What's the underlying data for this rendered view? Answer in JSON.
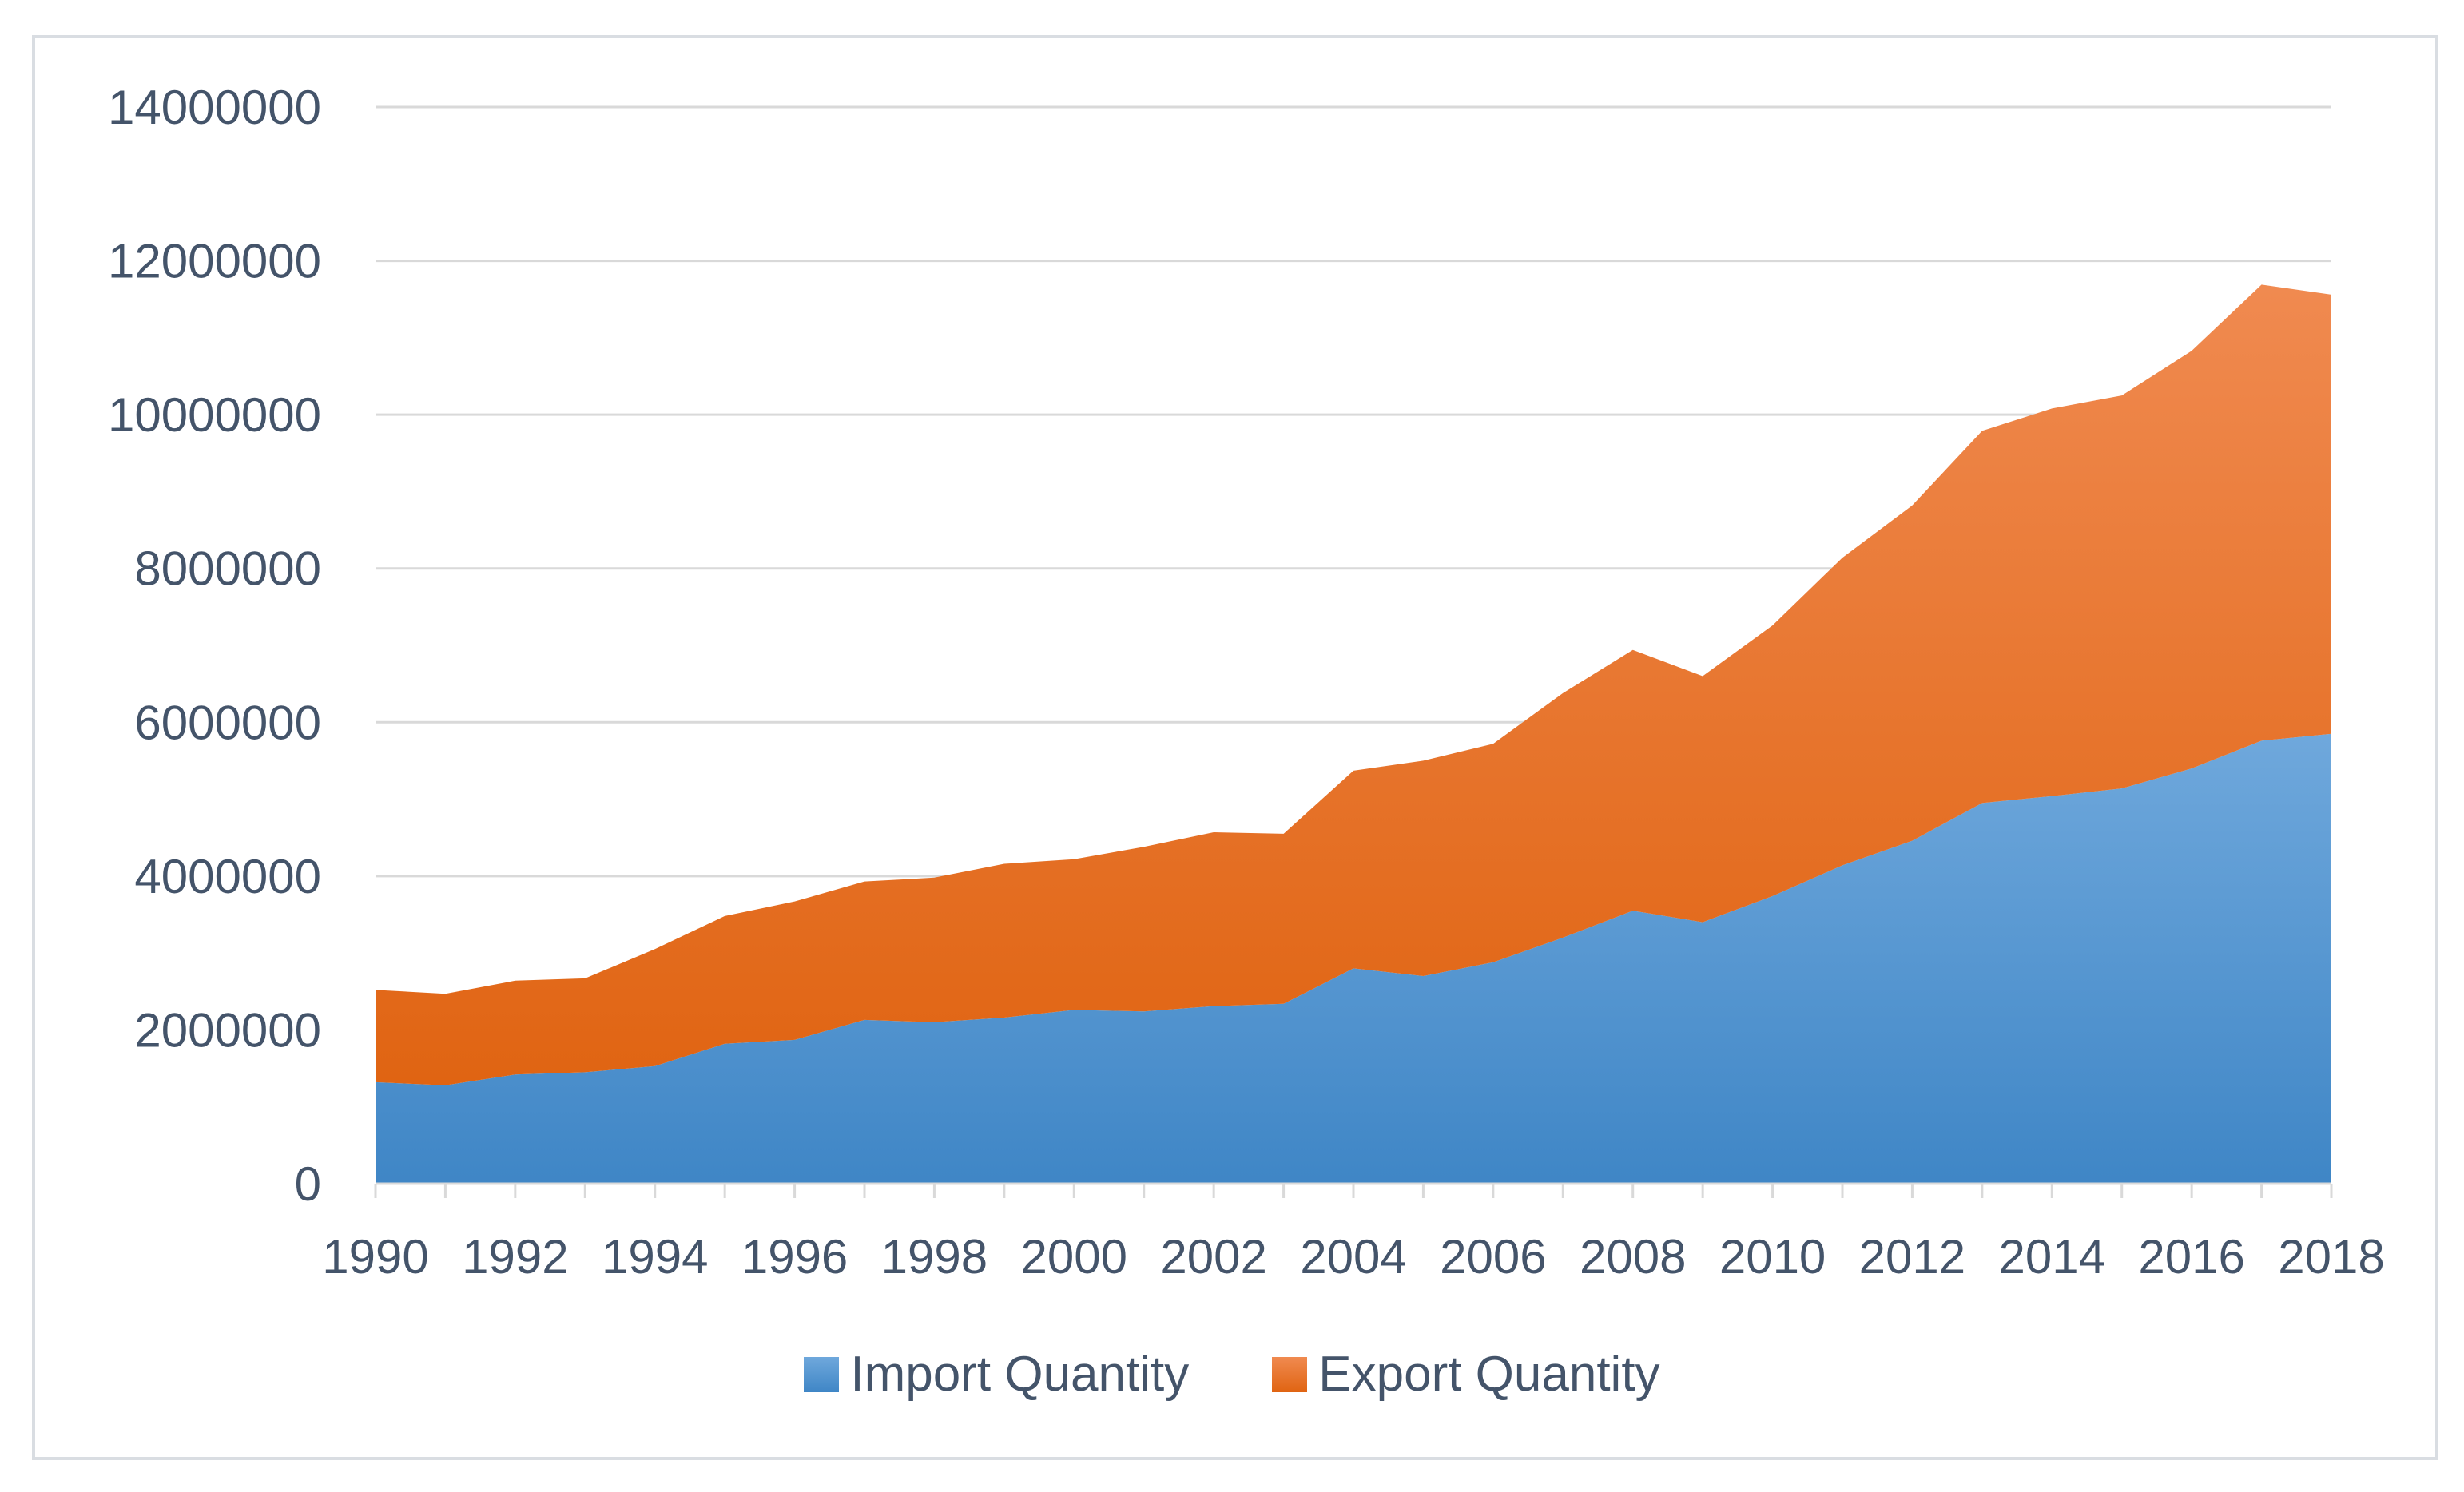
{
  "chart_data": {
    "type": "area",
    "stacked": true,
    "title": "",
    "xlabel": "",
    "ylabel": "",
    "x": [
      1990,
      1991,
      1992,
      1993,
      1994,
      1995,
      1996,
      1997,
      1998,
      1999,
      2000,
      2001,
      2002,
      2003,
      2004,
      2005,
      2006,
      2007,
      2008,
      2009,
      2010,
      2011,
      2012,
      2013,
      2014,
      2015,
      2016,
      2017,
      2018
    ],
    "x_tick_labels": [
      "1990",
      "1992",
      "1994",
      "1996",
      "1998",
      "2000",
      "2002",
      "2004",
      "2006",
      "2008",
      "2010",
      "2012",
      "2014",
      "2016",
      "2018"
    ],
    "ylim": [
      0,
      14000000
    ],
    "y_ticks": [
      0,
      2000000,
      4000000,
      6000000,
      8000000,
      10000000,
      12000000,
      14000000
    ],
    "y_tick_labels": [
      "0",
      "2000000",
      "4000000",
      "6000000",
      "8000000",
      "10000000",
      "12000000",
      "14000000"
    ],
    "grid": true,
    "legend_position": "bottom",
    "series": [
      {
        "name": "Import Quantity",
        "color": "#5b9bd5",
        "values": [
          1320000,
          1280000,
          1420000,
          1450000,
          1530000,
          1820000,
          1870000,
          2130000,
          2100000,
          2160000,
          2260000,
          2240000,
          2310000,
          2340000,
          2800000,
          2700000,
          2880000,
          3200000,
          3550000,
          3400000,
          3740000,
          4140000,
          4460000,
          4950000,
          5040000,
          5140000,
          5400000,
          5760000,
          5850000
        ]
      },
      {
        "name": "Export Quantity",
        "color": "#ed7d31",
        "values": [
          1200000,
          1190000,
          1220000,
          1220000,
          1520000,
          1660000,
          1800000,
          1800000,
          1880000,
          2000000,
          1960000,
          2140000,
          2260000,
          2210000,
          2570000,
          2800000,
          2840000,
          3180000,
          3390000,
          3200000,
          3520000,
          4000000,
          4360000,
          4840000,
          5040000,
          5110000,
          5430000,
          5930000,
          5710000
        ]
      }
    ]
  }
}
